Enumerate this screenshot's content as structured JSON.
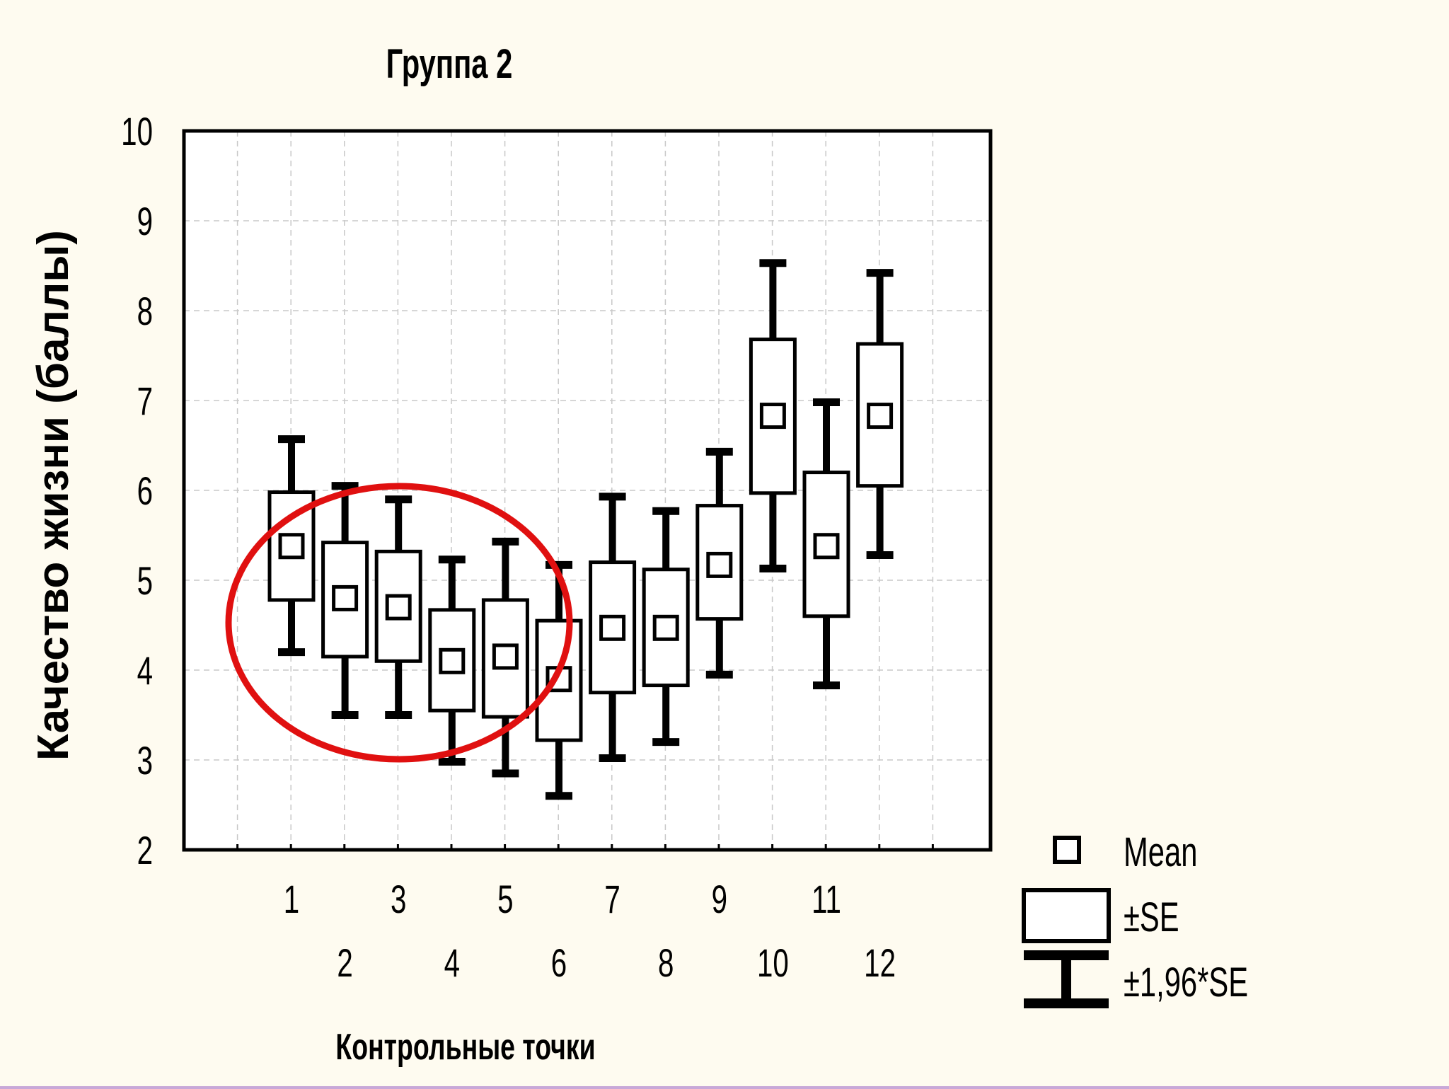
{
  "chart_data": {
    "type": "boxplot",
    "title": "Группа 2",
    "xlabel": "Контрольные точки",
    "ylabel": "Качество жизни (баллы)",
    "ylim": [
      2,
      10
    ],
    "yticks": [
      "2",
      "3",
      "4",
      "5",
      "6",
      "7",
      "8",
      "9",
      "10"
    ],
    "categories": [
      "1",
      "2",
      "3",
      "4",
      "5",
      "6",
      "7",
      "8",
      "9",
      "10",
      "11",
      "12"
    ],
    "series": [
      {
        "name": "Mean",
        "values": [
          5.38,
          4.8,
          4.7,
          4.1,
          4.15,
          3.9,
          4.47,
          4.47,
          5.17,
          6.83,
          5.38,
          6.83
        ]
      },
      {
        "name": "±SE",
        "values": [
          [
            4.78,
            5.98
          ],
          [
            4.15,
            5.42
          ],
          [
            4.1,
            5.32
          ],
          [
            3.55,
            4.67
          ],
          [
            3.48,
            4.78
          ],
          [
            3.22,
            4.55
          ],
          [
            3.75,
            5.2
          ],
          [
            3.83,
            5.12
          ],
          [
            4.57,
            5.83
          ],
          [
            5.97,
            7.68
          ],
          [
            4.6,
            6.2
          ],
          [
            6.05,
            7.63
          ]
        ]
      },
      {
        "name": "±1,96*SE",
        "values": [
          [
            4.2,
            6.57
          ],
          [
            3.5,
            6.05
          ],
          [
            3.5,
            5.9
          ],
          [
            2.98,
            5.23
          ],
          [
            2.85,
            5.43
          ],
          [
            2.6,
            5.17
          ],
          [
            3.02,
            5.93
          ],
          [
            3.2,
            5.77
          ],
          [
            3.95,
            6.43
          ],
          [
            5.13,
            8.53
          ],
          [
            3.83,
            6.98
          ],
          [
            5.28,
            8.42
          ]
        ]
      }
    ],
    "grid": true,
    "legend": "bottom-right",
    "legend_labels": [
      "Mean",
      "±SE",
      "±1,96*SE"
    ],
    "annotation": "red ellipse around points 1–6",
    "colors": {
      "background": "#fefbf0",
      "plot_background": "#ffffff",
      "marks": "#000000",
      "ellipse": "#e01010"
    }
  }
}
